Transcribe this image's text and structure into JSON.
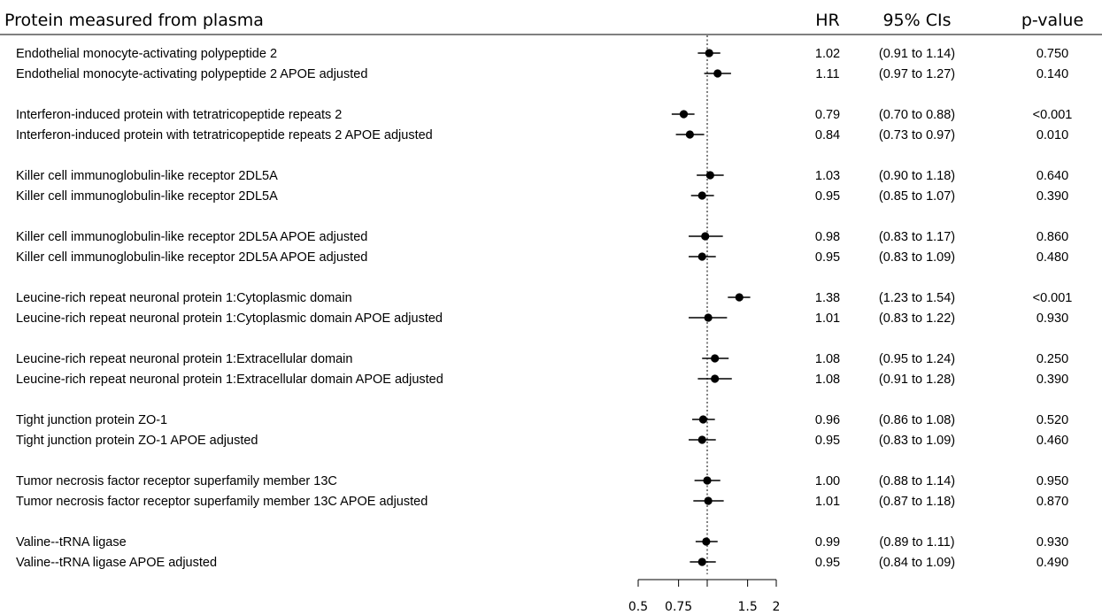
{
  "chart_data": {
    "type": "forest",
    "header": {
      "label": "Protein measured from plasma",
      "hr": "HR",
      "ci": "95% CIs",
      "p": "p-value"
    },
    "x_axis": {
      "scale": "log",
      "range": [
        0.5,
        2
      ],
      "ticks": [
        0.5,
        0.75,
        1,
        1.5,
        2
      ],
      "tick_labels": [
        "0.5",
        "0.75",
        "",
        "1.5",
        "2"
      ],
      "reference_line": 1
    },
    "groups": [
      {
        "rows": [
          {
            "label": "Endothelial monocyte-activating polypeptide 2",
            "hr": 1.02,
            "lo": 0.91,
            "hi": 1.14,
            "hr_text": "1.02",
            "ci_text": "(0.91 to 1.14)",
            "p_text": "0.750"
          },
          {
            "label": "Endothelial monocyte-activating polypeptide 2 APOE adjusted",
            "hr": 1.11,
            "lo": 0.97,
            "hi": 1.27,
            "hr_text": "1.11",
            "ci_text": "(0.97 to 1.27)",
            "p_text": "0.140"
          }
        ]
      },
      {
        "rows": [
          {
            "label": "Interferon-induced protein with tetratricopeptide repeats 2",
            "hr": 0.79,
            "lo": 0.7,
            "hi": 0.88,
            "hr_text": "0.79",
            "ci_text": "(0.70 to 0.88)",
            "p_text": "<0.001"
          },
          {
            "label": "Interferon-induced protein with tetratricopeptide repeats 2 APOE adjusted",
            "hr": 0.84,
            "lo": 0.73,
            "hi": 0.97,
            "hr_text": "0.84",
            "ci_text": "(0.73 to 0.97)",
            "p_text": "0.010"
          }
        ]
      },
      {
        "rows": [
          {
            "label": "Killer cell immunoglobulin-like receptor 2DL5A",
            "hr": 1.03,
            "lo": 0.9,
            "hi": 1.18,
            "hr_text": "1.03",
            "ci_text": "(0.90 to 1.18)",
            "p_text": "0.640"
          },
          {
            "label": "Killer cell immunoglobulin-like receptor 2DL5A",
            "hr": 0.95,
            "lo": 0.85,
            "hi": 1.07,
            "hr_text": "0.95",
            "ci_text": "(0.85 to 1.07)",
            "p_text": "0.390"
          }
        ]
      },
      {
        "rows": [
          {
            "label": "Killer cell immunoglobulin-like receptor 2DL5A APOE adjusted",
            "hr": 0.98,
            "lo": 0.83,
            "hi": 1.17,
            "hr_text": "0.98",
            "ci_text": "(0.83 to 1.17)",
            "p_text": "0.860"
          },
          {
            "label": "Killer cell immunoglobulin-like receptor 2DL5A APOE adjusted",
            "hr": 0.95,
            "lo": 0.83,
            "hi": 1.09,
            "hr_text": "0.95",
            "ci_text": "(0.83 to 1.09)",
            "p_text": "0.480"
          }
        ]
      },
      {
        "rows": [
          {
            "label": "Leucine-rich repeat neuronal protein 1:Cytoplasmic domain",
            "hr": 1.38,
            "lo": 1.23,
            "hi": 1.54,
            "hr_text": "1.38",
            "ci_text": "(1.23 to 1.54)",
            "p_text": "<0.001"
          },
          {
            "label": "Leucine-rich repeat neuronal protein 1:Cytoplasmic domain APOE adjusted",
            "hr": 1.01,
            "lo": 0.83,
            "hi": 1.22,
            "hr_text": "1.01",
            "ci_text": "(0.83 to 1.22)",
            "p_text": "0.930"
          }
        ]
      },
      {
        "rows": [
          {
            "label": "Leucine-rich repeat neuronal protein 1:Extracellular domain",
            "hr": 1.08,
            "lo": 0.95,
            "hi": 1.24,
            "hr_text": "1.08",
            "ci_text": "(0.95 to 1.24)",
            "p_text": "0.250"
          },
          {
            "label": "Leucine-rich repeat neuronal protein 1:Extracellular domain APOE adjusted",
            "hr": 1.08,
            "lo": 0.91,
            "hi": 1.28,
            "hr_text": "1.08",
            "ci_text": "(0.91 to 1.28)",
            "p_text": "0.390"
          }
        ]
      },
      {
        "rows": [
          {
            "label": "Tight junction protein ZO-1",
            "hr": 0.96,
            "lo": 0.86,
            "hi": 1.08,
            "hr_text": "0.96",
            "ci_text": "(0.86 to 1.08)",
            "p_text": "0.520"
          },
          {
            "label": "Tight junction protein ZO-1 APOE adjusted",
            "hr": 0.95,
            "lo": 0.83,
            "hi": 1.09,
            "hr_text": "0.95",
            "ci_text": "(0.83 to 1.09)",
            "p_text": "0.460"
          }
        ]
      },
      {
        "rows": [
          {
            "label": "Tumor necrosis factor receptor superfamily member 13C",
            "hr": 1.0,
            "lo": 0.88,
            "hi": 1.14,
            "hr_text": "1.00",
            "ci_text": "(0.88 to 1.14)",
            "p_text": "0.950"
          },
          {
            "label": "Tumor necrosis factor receptor superfamily member 13C APOE adjusted",
            "hr": 1.01,
            "lo": 0.87,
            "hi": 1.18,
            "hr_text": "1.01",
            "ci_text": "(0.87 to 1.18)",
            "p_text": "0.870"
          }
        ]
      },
      {
        "rows": [
          {
            "label": "Valine--tRNA ligase",
            "hr": 0.99,
            "lo": 0.89,
            "hi": 1.11,
            "hr_text": "0.99",
            "ci_text": "(0.89 to 1.11)",
            "p_text": "0.930"
          },
          {
            "label": "Valine--tRNA ligase APOE adjusted",
            "hr": 0.95,
            "lo": 0.84,
            "hi": 1.09,
            "hr_text": "0.95",
            "ci_text": "(0.84 to 1.09)",
            "p_text": "0.490"
          }
        ]
      }
    ]
  }
}
